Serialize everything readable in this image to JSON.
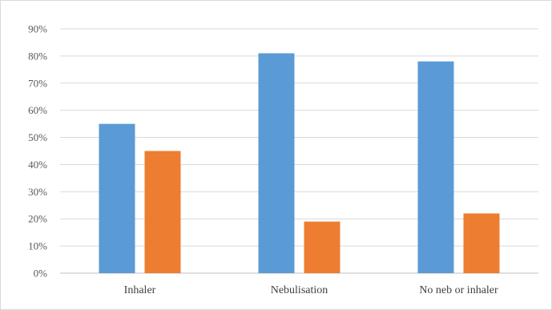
{
  "chart_data": {
    "type": "bar",
    "categories": [
      "Inhaler",
      "Nebulisation",
      "No neb or inhaler"
    ],
    "series": [
      {
        "values": [
          55,
          81,
          78
        ],
        "color": "#5b9bd5"
      },
      {
        "values": [
          45,
          19,
          22
        ],
        "color": "#ed7d31"
      }
    ],
    "ylim": [
      0,
      90
    ],
    "yticks": [
      "0%",
      "10%",
      "20%",
      "30%",
      "40%",
      "50%",
      "60%",
      "70%",
      "80%",
      "90%"
    ],
    "grid": true,
    "legend": "none"
  }
}
